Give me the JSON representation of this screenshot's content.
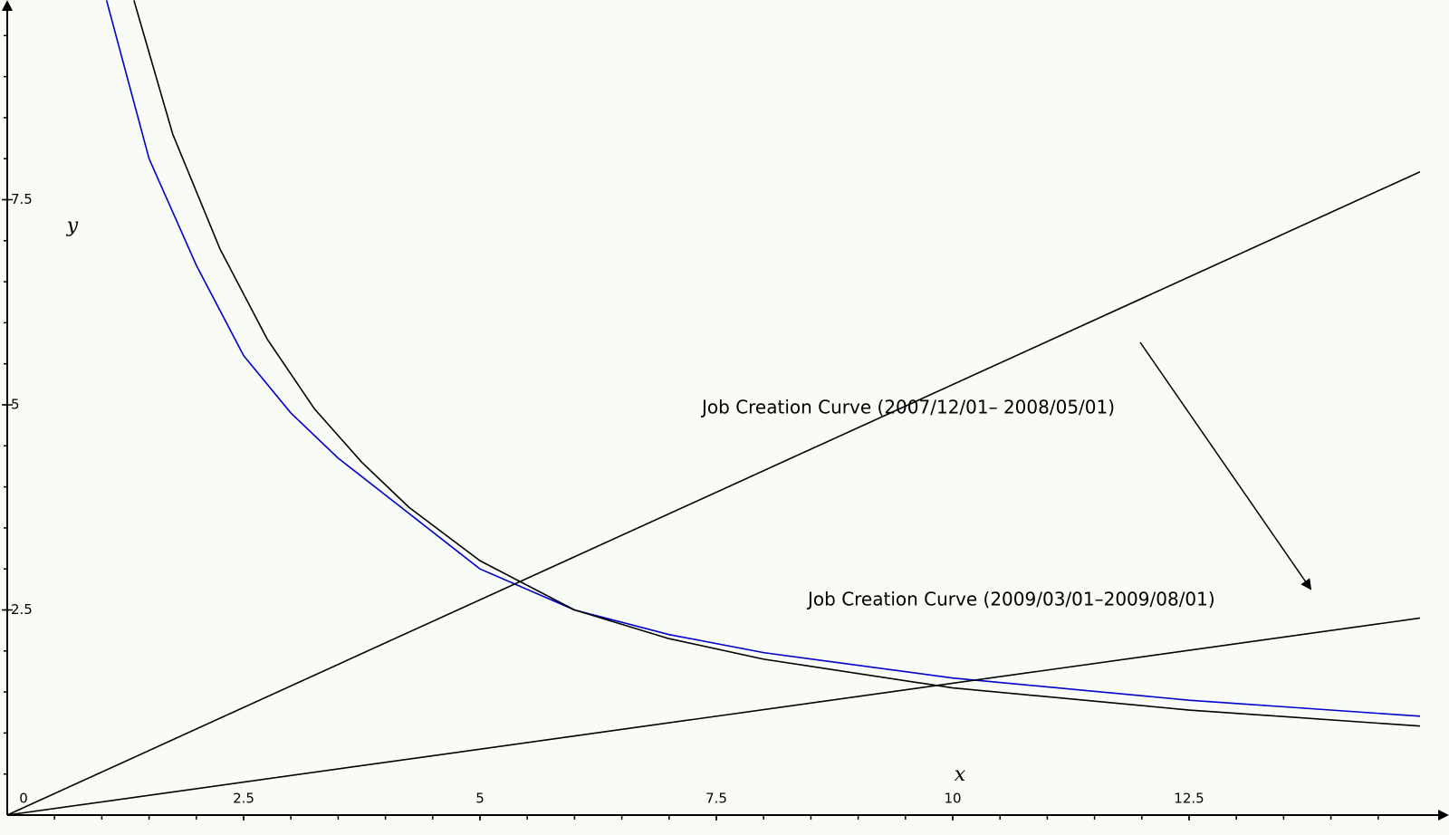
{
  "chart_data": {
    "type": "line",
    "x_label": "x",
    "y_label": "y",
    "origin_label": "0",
    "xlim": [
      0,
      15
    ],
    "ylim": [
      0,
      10
    ],
    "xticks": [
      2.5,
      5,
      7.5,
      10,
      12.5
    ],
    "yticks": [
      2.5,
      5,
      7.5
    ],
    "annotations": [
      "Job Creation Curve (2007/12/01– 2008/05/01)",
      "Job Creation Curve (2009/03/01–2009/08/01)"
    ],
    "series": [
      {
        "color": "#0000cc",
        "x": [
          1.05,
          1.5,
          2,
          2.5,
          3,
          3.5,
          4,
          5,
          6,
          7,
          8,
          10,
          12.5,
          15
        ],
        "values": [
          9.93,
          8.0,
          6.7,
          5.6,
          4.9,
          4.35,
          3.9,
          3.0,
          2.5,
          2.2,
          1.98,
          1.67,
          1.4,
          1.2
        ]
      },
      {
        "color": "#000000",
        "x": [
          1.34,
          1.75,
          2.25,
          2.75,
          3.25,
          3.75,
          4.25,
          5,
          6,
          7,
          8,
          10,
          12.5,
          15
        ],
        "values": [
          9.93,
          8.3,
          6.9,
          5.8,
          4.95,
          4.3,
          3.75,
          3.1,
          2.5,
          2.15,
          1.9,
          1.55,
          1.28,
          1.08
        ]
      },
      {
        "color": "#000000",
        "x": [
          0,
          15
        ],
        "values": [
          0,
          7.87
        ]
      },
      {
        "color": "#000000",
        "x": [
          0,
          15
        ],
        "values": [
          0,
          2.41
        ]
      }
    ]
  }
}
